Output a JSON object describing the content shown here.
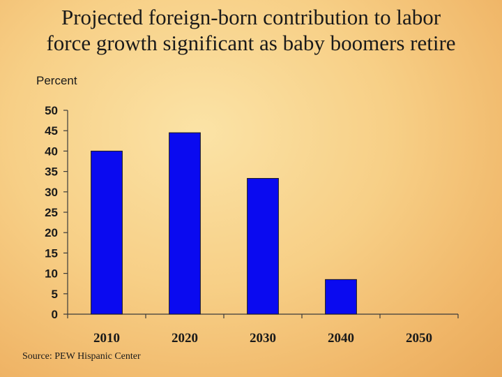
{
  "slide": {
    "title_line1": "Projected foreign-born contribution to labor",
    "title_line2": "force growth significant as baby boomers retire",
    "source": "Source: PEW Hispanic Center"
  },
  "chart_data": {
    "type": "bar",
    "title": "Projected foreign-born contribution to labor force growth significant as baby boomers retire",
    "ylabel": "Percent",
    "xlabel": "",
    "categories": [
      "2010",
      "2020",
      "2030",
      "2040",
      "2050"
    ],
    "values": [
      40,
      44.5,
      33.3,
      8.5,
      0
    ],
    "ylim": [
      0,
      50
    ],
    "yticks": [
      0,
      5,
      10,
      15,
      20,
      25,
      30,
      35,
      40,
      45,
      50
    ],
    "bar_color": "#0a0af0",
    "grid": false,
    "legend": "none"
  }
}
